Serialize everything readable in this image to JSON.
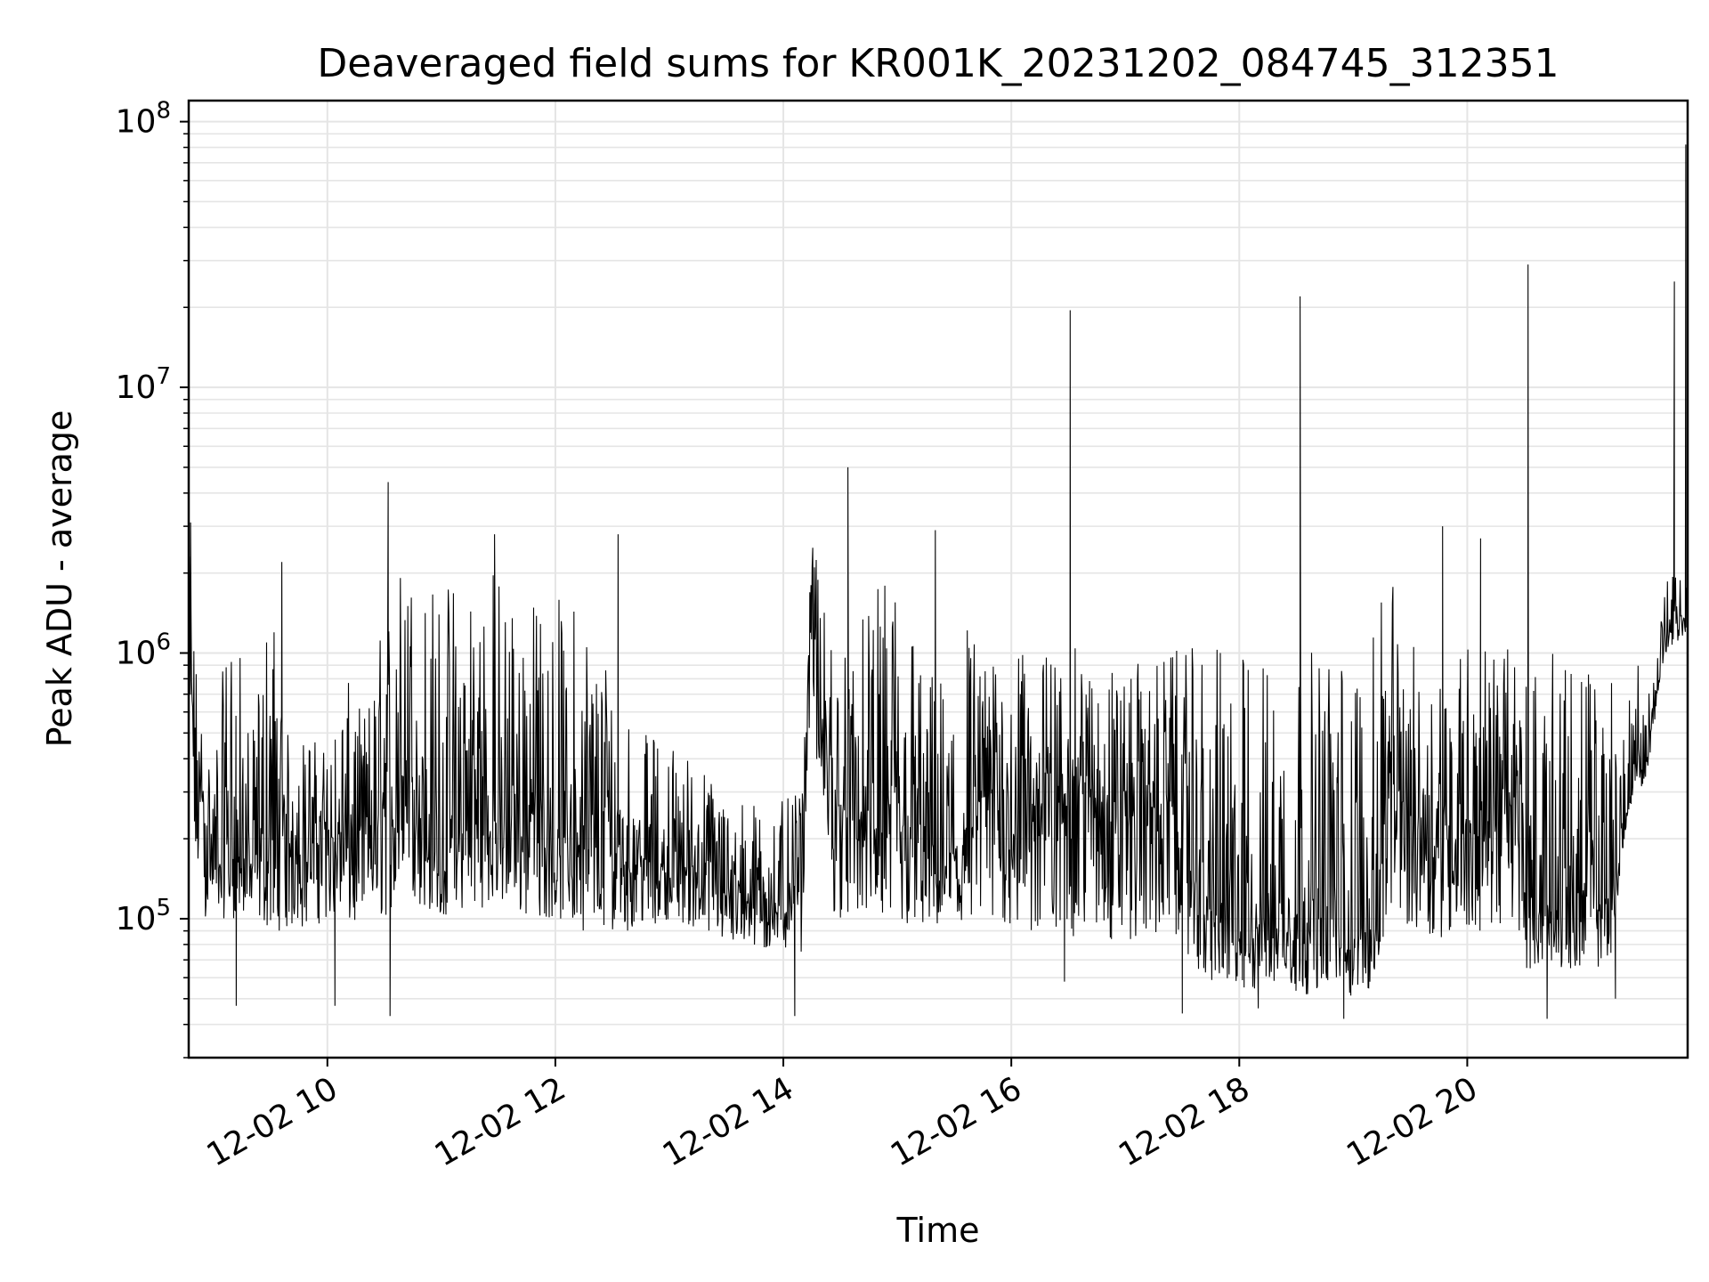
{
  "chart_data": {
    "type": "line",
    "title": "Deaveraged field sums for KR001K_20231202_084745_312351",
    "xlabel": "Time",
    "ylabel": "Peak ADU - average",
    "y_scale": "log",
    "ylim": [
      30000,
      120000000
    ],
    "xlim": [
      "2023-12-02 08:47",
      "2023-12-02 21:56"
    ],
    "x_ticks": [
      {
        "at": "2023-12-02 10:00",
        "label": "12-02 10"
      },
      {
        "at": "2023-12-02 12:00",
        "label": "12-02 12"
      },
      {
        "at": "2023-12-02 14:00",
        "label": "12-02 14"
      },
      {
        "at": "2023-12-02 16:00",
        "label": "12-02 16"
      },
      {
        "at": "2023-12-02 18:00",
        "label": "12-02 18"
      },
      {
        "at": "2023-12-02 20:00",
        "label": "12-02 20"
      }
    ],
    "y_ticks": [
      {
        "value": 100000,
        "base": "10",
        "exp": "5"
      },
      {
        "value": 1000000,
        "base": "10",
        "exp": "6"
      },
      {
        "value": 10000000,
        "base": "10",
        "exp": "7"
      },
      {
        "value": 100000000,
        "base": "10",
        "exp": "8"
      }
    ],
    "grid": true,
    "line_color": "#000000",
    "grid_color": "#e5e5e5",
    "series": [
      {
        "x": [
          "2023-12-02 08:47",
          "2023-12-02 08:50",
          "2023-12-02 08:55",
          "2023-12-02 09:00",
          "2023-12-02 09:10",
          "2023-12-02 09:20",
          "2023-12-02 09:30",
          "2023-12-02 09:40",
          "2023-12-02 09:50",
          "2023-12-02 10:00",
          "2023-12-02 10:10",
          "2023-12-02 10:20",
          "2023-12-02 10:30",
          "2023-12-02 10:40",
          "2023-12-02 10:50",
          "2023-12-02 11:00",
          "2023-12-02 11:15",
          "2023-12-02 11:30",
          "2023-12-02 11:45",
          "2023-12-02 12:00",
          "2023-12-02 12:15",
          "2023-12-02 12:30",
          "2023-12-02 12:45",
          "2023-12-02 13:00",
          "2023-12-02 13:15",
          "2023-12-02 13:30",
          "2023-12-02 13:45",
          "2023-12-02 14:00",
          "2023-12-02 14:10",
          "2023-12-02 14:15",
          "2023-12-02 14:20",
          "2023-12-02 14:30",
          "2023-12-02 14:45",
          "2023-12-02 15:00",
          "2023-12-02 15:15",
          "2023-12-02 15:30",
          "2023-12-02 15:36",
          "2023-12-02 15:45",
          "2023-12-02 16:00",
          "2023-12-02 16:15",
          "2023-12-02 16:30",
          "2023-12-02 16:45",
          "2023-12-02 17:00",
          "2023-12-02 17:15",
          "2023-12-02 17:30",
          "2023-12-02 17:40",
          "2023-12-02 17:50",
          "2023-12-02 18:00",
          "2023-12-02 18:15",
          "2023-12-02 18:30",
          "2023-12-02 18:45",
          "2023-12-02 19:00",
          "2023-12-02 19:10",
          "2023-12-02 19:20",
          "2023-12-02 19:30",
          "2023-12-02 19:45",
          "2023-12-02 20:00",
          "2023-12-02 20:15",
          "2023-12-02 20:30",
          "2023-12-02 20:30",
          "2023-12-02 20:45",
          "2023-12-02 21:00",
          "2023-12-02 21:15",
          "2023-12-02 21:25",
          "2023-12-02 21:35",
          "2023-12-02 21:45",
          "2023-12-02 21:52",
          "2023-12-02 21:56"
        ],
        "y": [
          1000000,
          450000,
          250000,
          170000,
          180000,
          160000,
          200000,
          190000,
          230000,
          210000,
          180000,
          230000,
          200000,
          400000,
          250000,
          150000,
          240000,
          220000,
          260000,
          200000,
          180000,
          190000,
          170000,
          150000,
          160000,
          130000,
          120000,
          110000,
          180000,
          2200000,
          450000,
          250000,
          230000,
          200000,
          180000,
          170000,
          160000,
          300000,
          280000,
          260000,
          330000,
          300000,
          280000,
          260000,
          250000,
          110000,
          100000,
          90000,
          100000,
          95000,
          100000,
          85000,
          90000,
          300000,
          250000,
          220000,
          230000,
          270000,
          250000,
          120000,
          110000,
          120000,
          110000,
          250000,
          350000,
          1200000,
          1400000,
          1300000
        ],
        "envelope_low": [
          400000,
          130000,
          100000,
          100000,
          100000,
          100000,
          90000,
          90000,
          90000,
          100000,
          90000,
          90000,
          100000,
          120000,
          110000,
          100000,
          110000,
          110000,
          100000,
          100000,
          90000,
          90000,
          90000,
          100000,
          90000,
          80000,
          75000,
          75000,
          75000,
          1000000,
          110000,
          100000,
          100000,
          90000,
          90000,
          85000,
          80000,
          90000,
          90000,
          80000,
          85000,
          80000,
          80000,
          85000,
          80000,
          60000,
          55000,
          50000,
          55000,
          50000,
          55000,
          50000,
          55000,
          100000,
          90000,
          85000,
          85000,
          90000,
          85000,
          65000,
          65000,
          65000,
          65000,
          280000,
          600000,
          1000000,
          1100000,
          1100000
        ],
        "envelope_high": [
          2500000,
          1200000,
          450000,
          420000,
          1800000,
          450000,
          2000000,
          450000,
          500000,
          450000,
          800000,
          600000,
          1500000,
          2500000,
          2000000,
          1900000,
          2500000,
          2200000,
          1600000,
          1700000,
          1600000,
          1000000,
          500000,
          500000,
          400000,
          300000,
          280000,
          280000,
          300000,
          2700000,
          1800000,
          1000000,
          1500000,
          2500000,
          900000,
          800000,
          1800000,
          900000,
          1000000,
          1000000,
          1100000,
          900000,
          900000,
          950000,
          1050000,
          1050000,
          1050000,
          1050000,
          1050000,
          1050000,
          1050000,
          1050000,
          1100000,
          2300000,
          1100000,
          1000000,
          1200000,
          1100000,
          1000000,
          1000000,
          1000000,
          950000,
          900000,
          900000,
          900000,
          1900000,
          2000000,
          1800000
        ]
      }
    ],
    "spikes": [
      {
        "x": "2023-12-02 08:48",
        "y": 3100000
      },
      {
        "x": "2023-12-02 09:36",
        "y": 2200000
      },
      {
        "x": "2023-12-02 10:32",
        "y": 4400000
      },
      {
        "x": "2023-12-02 11:28",
        "y": 2800000
      },
      {
        "x": "2023-12-02 12:33",
        "y": 2800000
      },
      {
        "x": "2023-12-02 14:34",
        "y": 5000000
      },
      {
        "x": "2023-12-02 15:20",
        "y": 2900000
      },
      {
        "x": "2023-12-02 16:31",
        "y": 19500000
      },
      {
        "x": "2023-12-02 17:50",
        "y": 1000000
      },
      {
        "x": "2023-12-02 18:32",
        "y": 22000000
      },
      {
        "x": "2023-12-02 19:47",
        "y": 3000000
      },
      {
        "x": "2023-12-02 20:07",
        "y": 2700000
      },
      {
        "x": "2023-12-02 20:32",
        "y": 29000000
      },
      {
        "x": "2023-12-02 21:49",
        "y": 25000000
      },
      {
        "x": "2023-12-02 21:55",
        "y": 82000000
      }
    ],
    "dips": [
      {
        "x": "2023-12-02 09:12",
        "y": 47000
      },
      {
        "x": "2023-12-02 10:04",
        "y": 47000
      },
      {
        "x": "2023-12-02 10:33",
        "y": 43000
      },
      {
        "x": "2023-12-02 14:06",
        "y": 43000
      },
      {
        "x": "2023-12-02 16:28",
        "y": 58000
      },
      {
        "x": "2023-12-02 17:30",
        "y": 44000
      },
      {
        "x": "2023-12-02 18:10",
        "y": 46000
      },
      {
        "x": "2023-12-02 18:55",
        "y": 42000
      },
      {
        "x": "2023-12-02 20:42",
        "y": 42000
      },
      {
        "x": "2023-12-02 21:18",
        "y": 50000
      }
    ]
  }
}
